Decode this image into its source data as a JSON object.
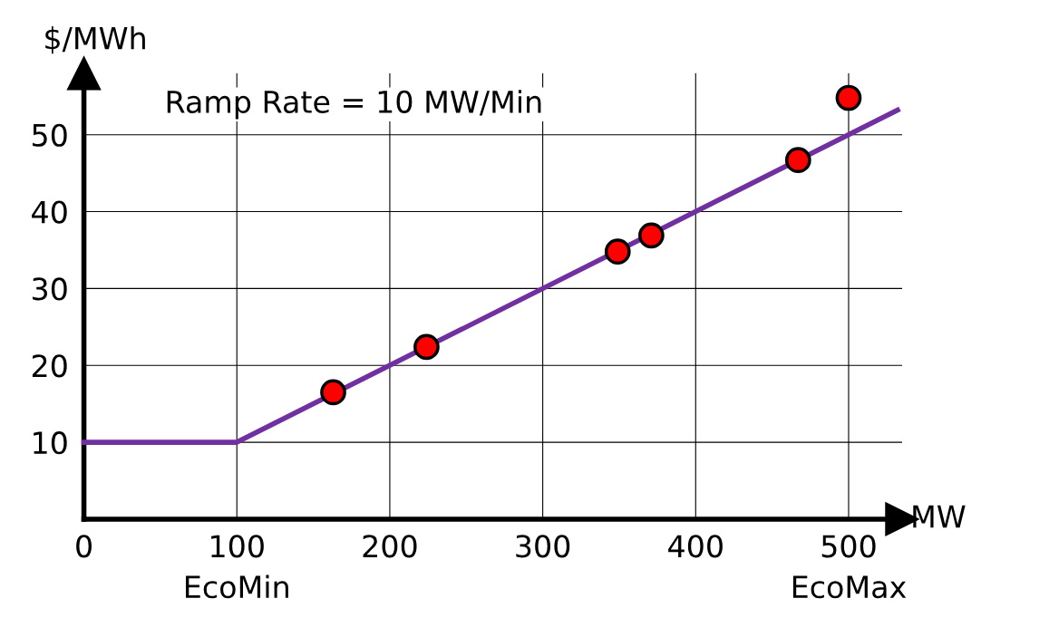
{
  "chart_data": {
    "type": "line",
    "xlabel": "MW",
    "ylabel": "$/MWh",
    "annotations": [
      "Ramp Rate = 10 MW/Min"
    ],
    "xlim": [
      0,
      535
    ],
    "ylim": [
      0,
      58
    ],
    "xticks": [
      0,
      {
        "value": 100,
        "label": "100\nEcoMin"
      },
      200,
      300,
      400,
      {
        "value": 500,
        "label": "500\nEcoMax"
      }
    ],
    "yticks": [
      10,
      20,
      30,
      40,
      50
    ],
    "grid": true,
    "series": [
      {
        "color": "#7030a0",
        "x": [
          0,
          100,
          532
        ],
        "values": [
          10,
          10,
          53.2
        ]
      },
      {
        "type": "scatter",
        "color": "#ff0000",
        "marker": "circle",
        "x": [
          163,
          224,
          349,
          371,
          467,
          500
        ],
        "values": [
          16.5,
          22.4,
          34.8,
          36.9,
          46.7,
          54.8
        ]
      }
    ]
  }
}
